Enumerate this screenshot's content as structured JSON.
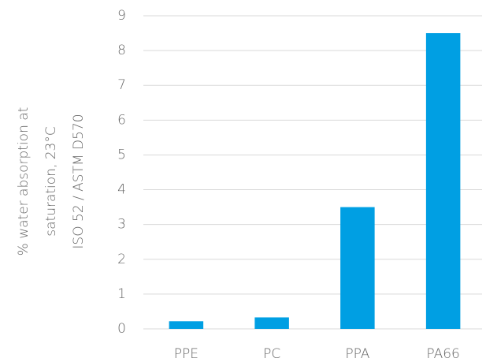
{
  "chart_data": {
    "type": "bar",
    "ylabel": [
      "% water absorption at",
      "saturation, 23°C",
      "ISO 52 / ASTM D570"
    ],
    "categories": [
      "PPE",
      "PC",
      "PPA",
      "PA66"
    ],
    "values": [
      0.22,
      0.33,
      3.5,
      8.5
    ],
    "color": "#009fe3",
    "ylim": [
      0,
      9
    ],
    "yticks": [
      0,
      1,
      2,
      3,
      4,
      5,
      6,
      7,
      8,
      9
    ],
    "grid": true
  }
}
